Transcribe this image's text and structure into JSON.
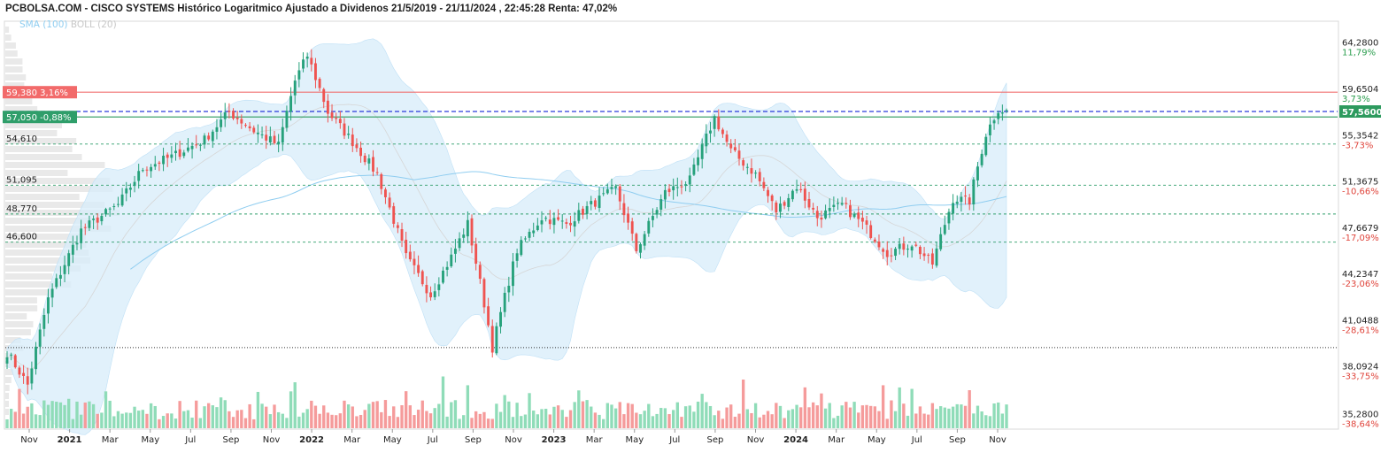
{
  "header": {
    "title": "PCBOLSA.COM - CISCO SYSTEMS Histórico Logaritmico Ajustado a Dividenos 21/5/2019 - 21/11/2024 , 22:45:28 Renta: 47,02%",
    "indicators": [
      "SMA (100)",
      "BOLL (20)"
    ],
    "indicator_colors": [
      "#8fcdf0",
      "#c8c8c8"
    ]
  },
  "colors": {
    "up": "#26a17b",
    "down": "#ef5350",
    "vol_up": "#8fdcb8",
    "vol_down": "#f59b9b",
    "band_fill": "#d7ecfa",
    "sma": "#8fcdf0",
    "resistance": "#f07070",
    "current": "#2d9a5e",
    "dashed_blue": "#2a3bd9",
    "dashed_green": "#2f9e6a",
    "pos_pct": "#2a9d4d",
    "neg_pct": "#e0453c"
  },
  "chart_data": {
    "type": "candlestick",
    "title": "PCBOLSA.COM - CISCO SYSTEMS Histórico Logaritmico Ajustado a Dividenos 21/5/2019 - 21/11/2024 , 22:45:28 Renta: 47,02%",
    "y_scale": "log",
    "ylim": [
      34.5,
      66.5
    ],
    "x_tick_labels": [
      {
        "label": "Nov",
        "bold": false
      },
      {
        "label": "2021",
        "bold": true
      },
      {
        "label": "Mar",
        "bold": false
      },
      {
        "label": "May",
        "bold": false
      },
      {
        "label": "Jul",
        "bold": false
      },
      {
        "label": "Sep",
        "bold": false
      },
      {
        "label": "Nov",
        "bold": false
      },
      {
        "label": "2022",
        "bold": true
      },
      {
        "label": "Mar",
        "bold": false
      },
      {
        "label": "May",
        "bold": false
      },
      {
        "label": "Jul",
        "bold": false
      },
      {
        "label": "Sep",
        "bold": false
      },
      {
        "label": "Nov",
        "bold": false
      },
      {
        "label": "2023",
        "bold": true
      },
      {
        "label": "Mar",
        "bold": false
      },
      {
        "label": "May",
        "bold": false
      },
      {
        "label": "Jul",
        "bold": false
      },
      {
        "label": "Sep",
        "bold": false
      },
      {
        "label": "Nov",
        "bold": false
      },
      {
        "label": "2024",
        "bold": true
      },
      {
        "label": "Mar",
        "bold": false
      },
      {
        "label": "May",
        "bold": false
      },
      {
        "label": "Jul",
        "bold": false
      },
      {
        "label": "Sep",
        "bold": false
      },
      {
        "label": "Nov",
        "bold": false
      }
    ],
    "y_ticks": [
      {
        "price": "64,2800",
        "pct": "11,79%",
        "value": 64.28,
        "sign": "pos"
      },
      {
        "price": "59,6504",
        "pct": "3,73%",
        "value": 59.6504,
        "sign": "pos"
      },
      {
        "price": "55,3542",
        "pct": "-3,73%",
        "value": 55.3542,
        "sign": "neg"
      },
      {
        "price": "51,3675",
        "pct": "-10,66%",
        "value": 51.3675,
        "sign": "neg"
      },
      {
        "price": "47,6679",
        "pct": "-17,09%",
        "value": 47.6679,
        "sign": "neg"
      },
      {
        "price": "44,2347",
        "pct": "-23,06%",
        "value": 44.2347,
        "sign": "neg"
      },
      {
        "price": "41,0488",
        "pct": "-28,61%",
        "value": 41.0488,
        "sign": "neg"
      },
      {
        "price": "38,0924",
        "pct": "-33,75%",
        "value": 38.0924,
        "sign": "neg"
      },
      {
        "price": "35,2800",
        "pct": "-38,64%",
        "value": 35.28,
        "sign": "neg"
      }
    ],
    "levels": [
      {
        "value": 59.38,
        "label": "59,380  3,16%",
        "kind": "resistance"
      },
      {
        "value": 57.05,
        "label": "57,050  -0,88%",
        "kind": "current-line"
      },
      {
        "value": 54.61,
        "label": "54,610",
        "kind": "dashed"
      },
      {
        "value": 51.095,
        "label": "51,095",
        "kind": "dashed"
      },
      {
        "value": 48.77,
        "label": "48,770",
        "kind": "dashed"
      },
      {
        "value": 46.6,
        "label": "46,600",
        "kind": "dashed"
      }
    ],
    "dotted_support": 39.3,
    "blue_dashed_value": 57.56,
    "last_price_tag": "57,5600",
    "anchors": [
      {
        "i": 0,
        "v": 39.0
      },
      {
        "i": 5,
        "v": 37.0
      },
      {
        "i": 10,
        "v": 42.5
      },
      {
        "i": 18,
        "v": 47.5
      },
      {
        "i": 27,
        "v": 49.5
      },
      {
        "i": 33,
        "v": 52.5
      },
      {
        "i": 40,
        "v": 53.5
      },
      {
        "i": 48,
        "v": 55.0
      },
      {
        "i": 54,
        "v": 57.5
      },
      {
        "i": 60,
        "v": 55.8
      },
      {
        "i": 66,
        "v": 54.5
      },
      {
        "i": 70,
        "v": 60.5
      },
      {
        "i": 73,
        "v": 63.0
      },
      {
        "i": 78,
        "v": 57.5
      },
      {
        "i": 84,
        "v": 54.8
      },
      {
        "i": 90,
        "v": 52.0
      },
      {
        "i": 97,
        "v": 45.5
      },
      {
        "i": 103,
        "v": 42.8
      },
      {
        "i": 108,
        "v": 45.5
      },
      {
        "i": 112,
        "v": 48.0
      },
      {
        "i": 118,
        "v": 39.3
      },
      {
        "i": 124,
        "v": 46.0
      },
      {
        "i": 130,
        "v": 48.5
      },
      {
        "i": 136,
        "v": 48.0
      },
      {
        "i": 142,
        "v": 49.5
      },
      {
        "i": 148,
        "v": 50.8
      },
      {
        "i": 153,
        "v": 46.0
      },
      {
        "i": 160,
        "v": 50.5
      },
      {
        "i": 166,
        "v": 51.5
      },
      {
        "i": 172,
        "v": 57.0
      },
      {
        "i": 176,
        "v": 54.0
      },
      {
        "i": 182,
        "v": 52.0
      },
      {
        "i": 187,
        "v": 49.0
      },
      {
        "i": 192,
        "v": 51.0
      },
      {
        "i": 197,
        "v": 48.5
      },
      {
        "i": 203,
        "v": 49.5
      },
      {
        "i": 208,
        "v": 48.0
      },
      {
        "i": 214,
        "v": 45.8
      },
      {
        "i": 220,
        "v": 46.5
      },
      {
        "i": 225,
        "v": 45.0
      },
      {
        "i": 230,
        "v": 50.0
      },
      {
        "i": 234,
        "v": 49.8
      },
      {
        "i": 238,
        "v": 55.5
      },
      {
        "i": 241,
        "v": 57.8
      },
      {
        "i": 243,
        "v": 57.56
      }
    ]
  }
}
